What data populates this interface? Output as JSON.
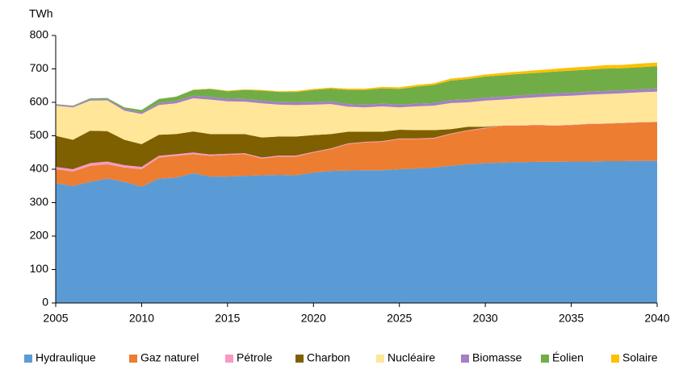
{
  "chart_data": {
    "type": "area",
    "stacked": true,
    "y_label": "TWh",
    "x": [
      2005,
      2006,
      2007,
      2008,
      2009,
      2010,
      2011,
      2012,
      2013,
      2014,
      2015,
      2016,
      2017,
      2018,
      2019,
      2020,
      2021,
      2022,
      2023,
      2024,
      2025,
      2026,
      2027,
      2028,
      2029,
      2030,
      2031,
      2032,
      2033,
      2034,
      2035,
      2036,
      2037,
      2038,
      2039,
      2040
    ],
    "xlim": [
      2005,
      2040
    ],
    "xticks": [
      2005,
      2010,
      2015,
      2020,
      2025,
      2030,
      2035,
      2040
    ],
    "ylim": [
      0,
      800
    ],
    "yticks": [
      0,
      100,
      200,
      300,
      400,
      500,
      600,
      700,
      800
    ],
    "grid": false,
    "legend": "bottom",
    "series": [
      {
        "name": "Hydraulique",
        "color": "#5b9bd5",
        "values": [
          358,
          350,
          362,
          372,
          362,
          348,
          372,
          375,
          388,
          378,
          378,
          380,
          382,
          383,
          382,
          390,
          395,
          396,
          397,
          397,
          400,
          402,
          405,
          410,
          415,
          418,
          420,
          421,
          422,
          422,
          423,
          423,
          424,
          424,
          425,
          425
        ]
      },
      {
        "name": "Gaz naturel",
        "color": "#ed7d31",
        "values": [
          42,
          43,
          48,
          43,
          43,
          52,
          63,
          65,
          57,
          62,
          65,
          65,
          50,
          55,
          56,
          60,
          65,
          79,
          83,
          85,
          90,
          88,
          87,
          95,
          100,
          104,
          110,
          109,
          110,
          108,
          109,
          112,
          112,
          114,
          115,
          116
        ]
      },
      {
        "name": "Pétrole",
        "color": "#f799c4",
        "values": [
          7,
          7,
          8,
          8,
          7,
          7,
          5,
          5,
          5,
          4,
          3,
          3,
          3,
          3,
          3,
          2,
          2,
          2,
          2,
          2,
          2,
          2,
          2,
          2,
          2,
          2,
          1,
          1,
          1,
          1,
          1,
          1,
          1,
          1,
          1,
          1
        ]
      },
      {
        "name": "Charbon",
        "color": "#7f6000",
        "values": [
          93,
          88,
          97,
          91,
          76,
          68,
          63,
          60,
          63,
          61,
          59,
          57,
          60,
          57,
          57,
          50,
          43,
          35,
          30,
          28,
          26,
          25,
          23,
          13,
          10,
          3,
          0,
          0,
          0,
          0,
          0,
          0,
          0,
          0,
          0,
          0
        ]
      },
      {
        "name": "Nucléaire",
        "color": "#ffe699",
        "values": [
          90,
          97,
          90,
          92,
          87,
          90,
          89,
          92,
          99,
          103,
          98,
          97,
          102,
          95,
          94,
          91,
          90,
          75,
          73,
          76,
          67,
          71,
          73,
          78,
          73,
          78,
          77,
          81,
          82,
          87,
          87,
          87,
          88,
          88,
          89,
          90
        ]
      },
      {
        "name": "Biomasse",
        "color": "#a57fc4",
        "values": [
          4,
          4,
          4,
          4,
          5,
          5,
          6,
          7,
          8,
          8,
          8,
          8,
          8,
          8,
          8,
          8,
          8,
          8,
          8,
          8,
          8,
          8,
          8,
          9,
          9,
          9,
          9,
          9,
          9,
          9,
          9,
          9,
          9,
          9,
          9,
          10
        ]
      },
      {
        "name": "Éolien",
        "color": "#70ad47",
        "values": [
          1,
          1,
          3,
          3,
          5,
          7,
          12,
          13,
          17,
          24,
          22,
          27,
          30,
          30,
          31,
          36,
          38,
          42,
          44,
          46,
          47,
          51,
          54,
          58,
          61,
          63,
          64,
          64,
          64,
          65,
          66,
          66,
          67,
          66,
          66,
          66
        ]
      },
      {
        "name": "Solaire",
        "color": "#ffc000",
        "values": [
          0,
          0,
          0,
          0,
          0,
          0,
          0,
          0,
          1,
          1,
          2,
          2,
          2,
          2,
          3,
          3,
          3,
          4,
          4,
          4,
          5,
          5,
          5,
          6,
          6,
          6,
          7,
          7,
          8,
          8,
          9,
          9,
          10,
          10,
          11,
          11
        ]
      }
    ]
  }
}
